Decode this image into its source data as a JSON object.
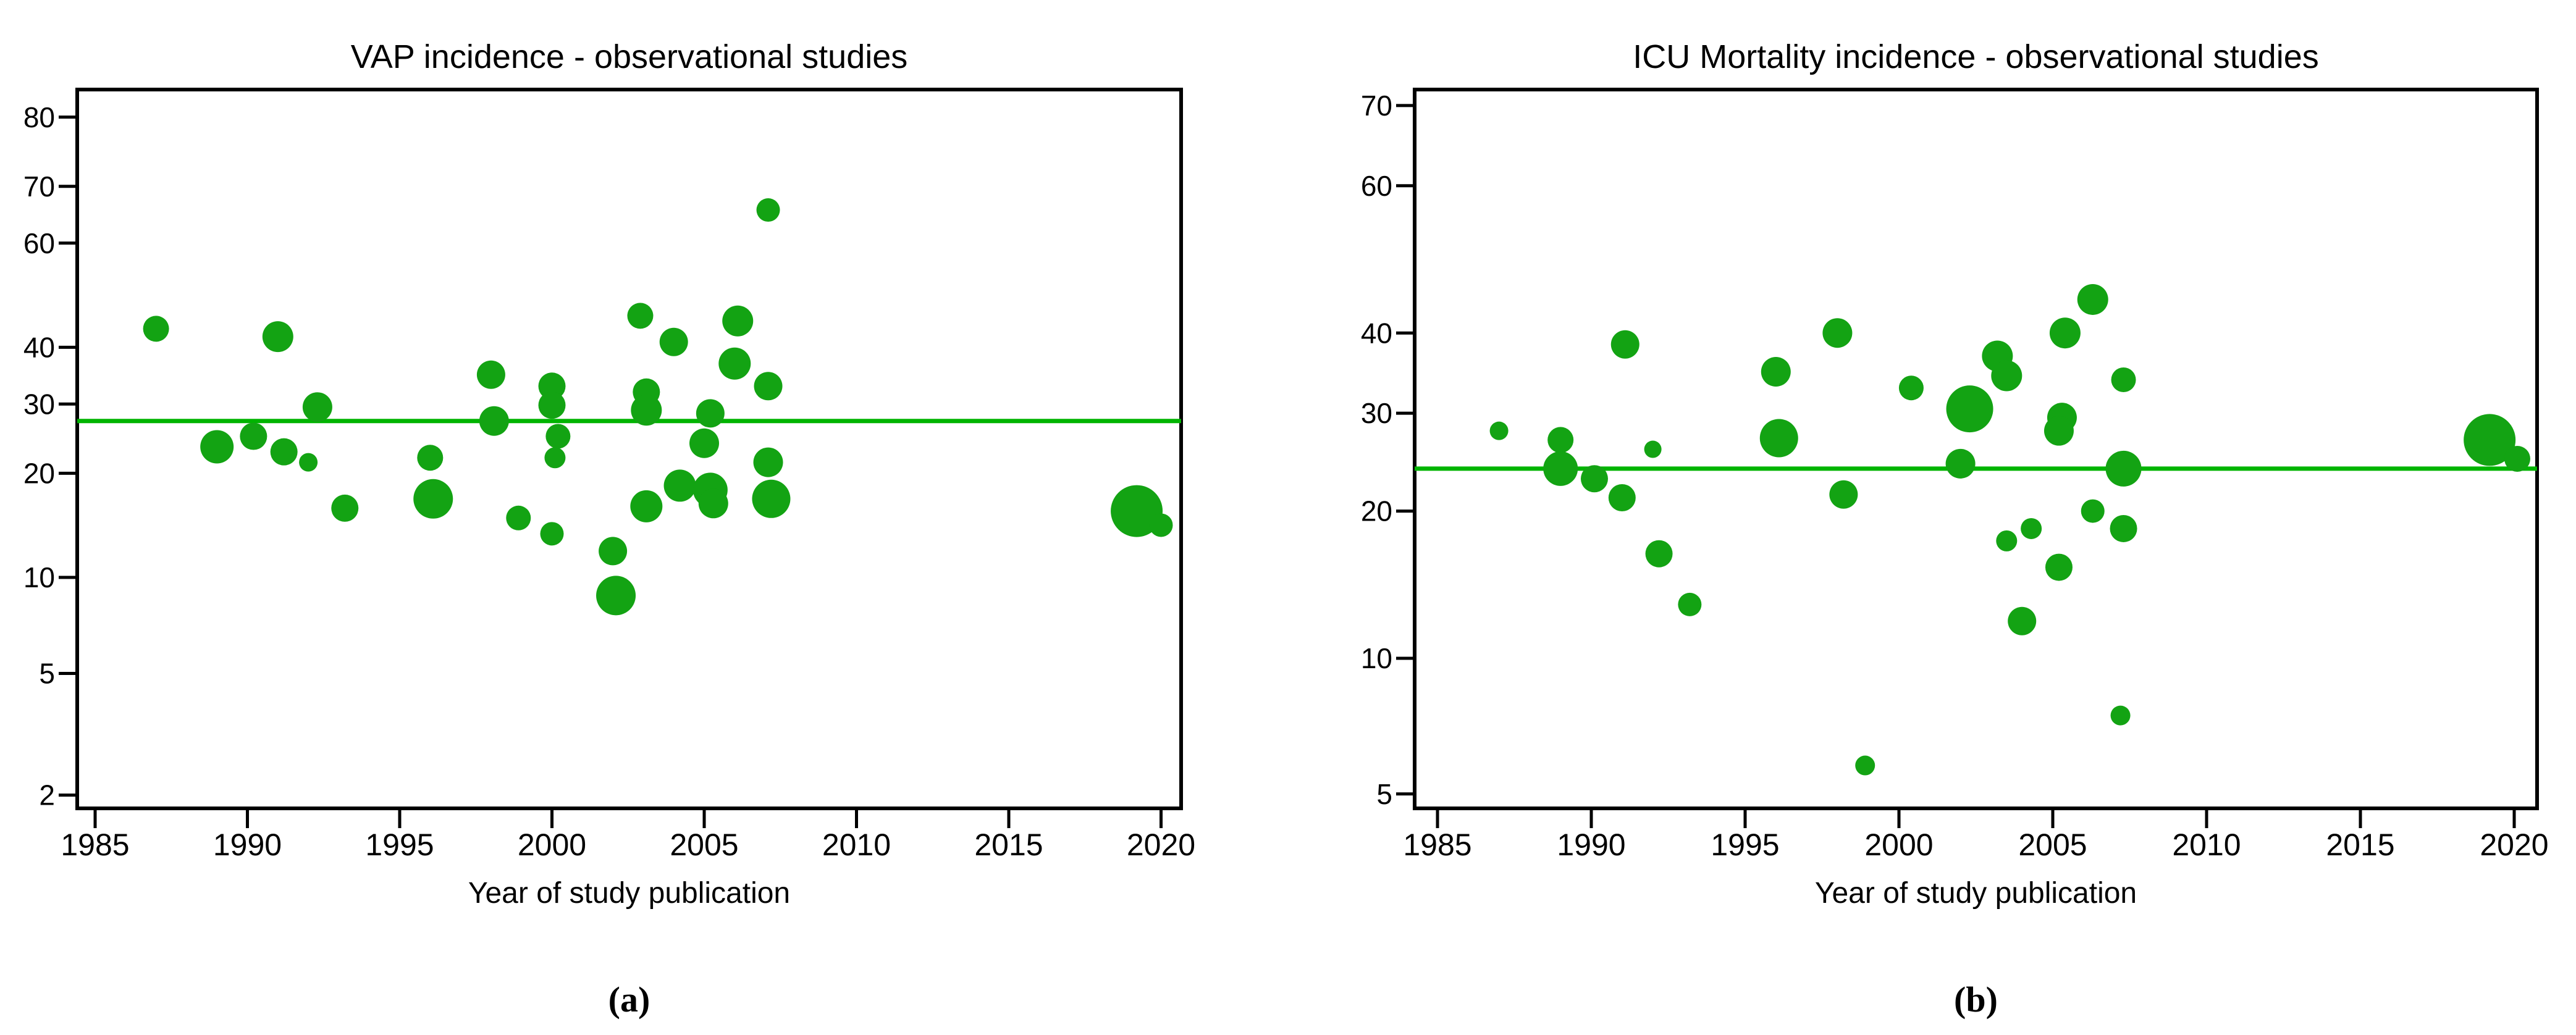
{
  "figure_background": "#ffffff",
  "colors": {
    "bubble_fill": "#13A313",
    "pooled_line": "#00B400",
    "axis": "#000000",
    "text": "#000000"
  },
  "chart_data": [
    {
      "type": "scatter",
      "id": "vap",
      "title": "VAP incidence - observational studies",
      "xlabel": "Year of study publication",
      "caption": "(a)",
      "y_scale": "logit-percent",
      "grid": false,
      "legend": "none",
      "x_ticks": [
        1985,
        1990,
        1995,
        2000,
        2005,
        2010,
        2015,
        2020
      ],
      "y_ticks": [
        80,
        70,
        60,
        40,
        30,
        20,
        10,
        5,
        2
      ],
      "x_range": [
        1984.4,
        2020.7
      ],
      "y_range_percent": [
        1.8,
        83.2
      ],
      "pooled_estimate_percent": 27.3,
      "points": [
        {
          "year": 1987.0,
          "percent": 43.5,
          "r": 21
        },
        {
          "year": 1989.0,
          "percent": 23.5,
          "r": 27
        },
        {
          "year": 1990.2,
          "percent": 25.0,
          "r": 22
        },
        {
          "year": 1991.0,
          "percent": 42.0,
          "r": 25
        },
        {
          "year": 1991.2,
          "percent": 22.8,
          "r": 22
        },
        {
          "year": 1992.0,
          "percent": 21.4,
          "r": 15
        },
        {
          "year": 1992.3,
          "percent": 29.5,
          "r": 24
        },
        {
          "year": 1993.2,
          "percent": 16.0,
          "r": 22
        },
        {
          "year": 1996.0,
          "percent": 22.0,
          "r": 21
        },
        {
          "year": 1996.1,
          "percent": 17.0,
          "r": 32
        },
        {
          "year": 1998.0,
          "percent": 35.0,
          "r": 23
        },
        {
          "year": 1998.1,
          "percent": 27.3,
          "r": 24
        },
        {
          "year": 1998.9,
          "percent": 15.0,
          "r": 20
        },
        {
          "year": 2000.0,
          "percent": 33.0,
          "r": 22
        },
        {
          "year": 2000.0,
          "percent": 29.8,
          "r": 22
        },
        {
          "year": 2000.2,
          "percent": 25.0,
          "r": 20
        },
        {
          "year": 2000.1,
          "percent": 22.0,
          "r": 17
        },
        {
          "year": 2000.0,
          "percent": 13.5,
          "r": 19
        },
        {
          "year": 2002.0,
          "percent": 12.0,
          "r": 23
        },
        {
          "year": 2002.1,
          "percent": 8.8,
          "r": 32
        },
        {
          "year": 2002.9,
          "percent": 46.0,
          "r": 21
        },
        {
          "year": 2003.1,
          "percent": 32.0,
          "r": 22
        },
        {
          "year": 2003.1,
          "percent": 29.0,
          "r": 25
        },
        {
          "year": 2003.1,
          "percent": 16.2,
          "r": 26
        },
        {
          "year": 2004.0,
          "percent": 41.0,
          "r": 23
        },
        {
          "year": 2004.2,
          "percent": 18.5,
          "r": 26
        },
        {
          "year": 2005.2,
          "percent": 28.5,
          "r": 23
        },
        {
          "year": 2005.0,
          "percent": 24.0,
          "r": 24
        },
        {
          "year": 2005.2,
          "percent": 18.0,
          "r": 28
        },
        {
          "year": 2005.3,
          "percent": 16.5,
          "r": 24
        },
        {
          "year": 2006.0,
          "percent": 37.0,
          "r": 26
        },
        {
          "year": 2006.1,
          "percent": 45.0,
          "r": 25
        },
        {
          "year": 2007.1,
          "percent": 66.0,
          "r": 19
        },
        {
          "year": 2007.1,
          "percent": 33.0,
          "r": 23
        },
        {
          "year": 2007.1,
          "percent": 21.4,
          "r": 24
        },
        {
          "year": 2007.2,
          "percent": 17.0,
          "r": 31
        },
        {
          "year": 2019.2,
          "percent": 15.7,
          "r": 42
        },
        {
          "year": 2020.0,
          "percent": 14.3,
          "r": 19
        }
      ]
    },
    {
      "type": "scatter",
      "id": "icu",
      "title": "ICU Mortality incidence - observational studies",
      "xlabel": "Year of study publication",
      "caption": "(b)",
      "y_scale": "logit-percent",
      "grid": false,
      "legend": "none",
      "x_ticks": [
        1985,
        1990,
        1995,
        2000,
        2005,
        2010,
        2015,
        2020
      ],
      "y_ticks": [
        70,
        60,
        40,
        30,
        20,
        10,
        5
      ],
      "x_range": [
        1984.3,
        2020.8
      ],
      "y_range_percent": [
        4.8,
        71.8
      ],
      "pooled_estimate_percent": 24.0,
      "points": [
        {
          "year": 1987.0,
          "percent": 28.0,
          "r": 15
        },
        {
          "year": 1989.0,
          "percent": 27.0,
          "r": 21
        },
        {
          "year": 1989.0,
          "percent": 24.0,
          "r": 28
        },
        {
          "year": 1990.1,
          "percent": 23.0,
          "r": 22
        },
        {
          "year": 1991.0,
          "percent": 21.2,
          "r": 22
        },
        {
          "year": 1991.1,
          "percent": 38.5,
          "r": 23
        },
        {
          "year": 1992.0,
          "percent": 26.0,
          "r": 14
        },
        {
          "year": 1992.2,
          "percent": 16.5,
          "r": 22
        },
        {
          "year": 1993.2,
          "percent": 13.0,
          "r": 19
        },
        {
          "year": 1996.0,
          "percent": 35.0,
          "r": 24
        },
        {
          "year": 1996.1,
          "percent": 27.2,
          "r": 31
        },
        {
          "year": 1998.0,
          "percent": 40.0,
          "r": 24
        },
        {
          "year": 1998.2,
          "percent": 21.5,
          "r": 23
        },
        {
          "year": 1998.9,
          "percent": 5.8,
          "r": 16
        },
        {
          "year": 2000.4,
          "percent": 33.0,
          "r": 20
        },
        {
          "year": 2002.0,
          "percent": 24.5,
          "r": 24
        },
        {
          "year": 2002.3,
          "percent": 30.5,
          "r": 38
        },
        {
          "year": 2003.2,
          "percent": 37.0,
          "r": 25
        },
        {
          "year": 2003.5,
          "percent": 34.5,
          "r": 25
        },
        {
          "year": 2003.5,
          "percent": 17.5,
          "r": 17
        },
        {
          "year": 2004.3,
          "percent": 18.5,
          "r": 17
        },
        {
          "year": 2004.0,
          "percent": 12.0,
          "r": 23
        },
        {
          "year": 2005.4,
          "percent": 40.0,
          "r": 25
        },
        {
          "year": 2005.3,
          "percent": 29.5,
          "r": 24
        },
        {
          "year": 2005.2,
          "percent": 28.0,
          "r": 24
        },
        {
          "year": 2005.2,
          "percent": 15.5,
          "r": 22
        },
        {
          "year": 2006.3,
          "percent": 44.5,
          "r": 25
        },
        {
          "year": 2006.3,
          "percent": 20.0,
          "r": 19
        },
        {
          "year": 2007.3,
          "percent": 34.0,
          "r": 20
        },
        {
          "year": 2007.3,
          "percent": 24.0,
          "r": 29
        },
        {
          "year": 2007.3,
          "percent": 18.5,
          "r": 22
        },
        {
          "year": 2007.2,
          "percent": 7.5,
          "r": 16
        },
        {
          "year": 2019.2,
          "percent": 27.0,
          "r": 42
        },
        {
          "year": 2020.1,
          "percent": 25.0,
          "r": 21
        }
      ]
    }
  ]
}
